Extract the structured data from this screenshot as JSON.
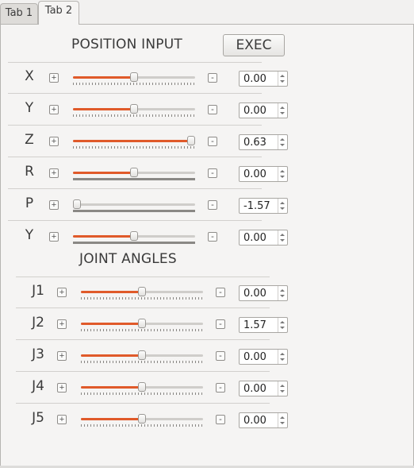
{
  "tabs": [
    {
      "label": "Tab 1",
      "active": false
    },
    {
      "label": "Tab 2",
      "active": true
    }
  ],
  "position_input": {
    "title": "POSITION INPUT",
    "exec_label": "EXEC",
    "rows": [
      {
        "label": "X",
        "value": "0.00",
        "slider_fraction": 0.5,
        "scale": "ticks"
      },
      {
        "label": "Y",
        "value": "0.00",
        "slider_fraction": 0.5,
        "scale": "ticks"
      },
      {
        "label": "Z",
        "value": "0.63",
        "slider_fraction": 1.0,
        "scale": "ticks"
      },
      {
        "label": "R",
        "value": "0.00",
        "slider_fraction": 0.5,
        "scale": "bar"
      },
      {
        "label": "P",
        "value": "-1.57",
        "slider_fraction": 0.0,
        "scale": "bar"
      },
      {
        "label": "Y",
        "value": "0.00",
        "slider_fraction": 0.5,
        "scale": "bar"
      }
    ]
  },
  "joint_angles": {
    "title": "JOINT ANGLES",
    "rows": [
      {
        "label": "J1",
        "value": "0.00",
        "slider_fraction": 0.5,
        "scale": "ticks"
      },
      {
        "label": "J2",
        "value": "1.57",
        "slider_fraction": 0.5,
        "scale": "ticks"
      },
      {
        "label": "J3",
        "value": "0.00",
        "slider_fraction": 0.5,
        "scale": "ticks"
      },
      {
        "label": "J4",
        "value": "0.00",
        "slider_fraction": 0.5,
        "scale": "ticks"
      },
      {
        "label": "J5",
        "value": "0.00",
        "slider_fraction": 0.5,
        "scale": "ticks"
      }
    ]
  },
  "buttons": {
    "plus": "+",
    "minus": "-"
  },
  "colors": {
    "slider_fill": "#e05a2a",
    "trough": "#cfcdca"
  }
}
